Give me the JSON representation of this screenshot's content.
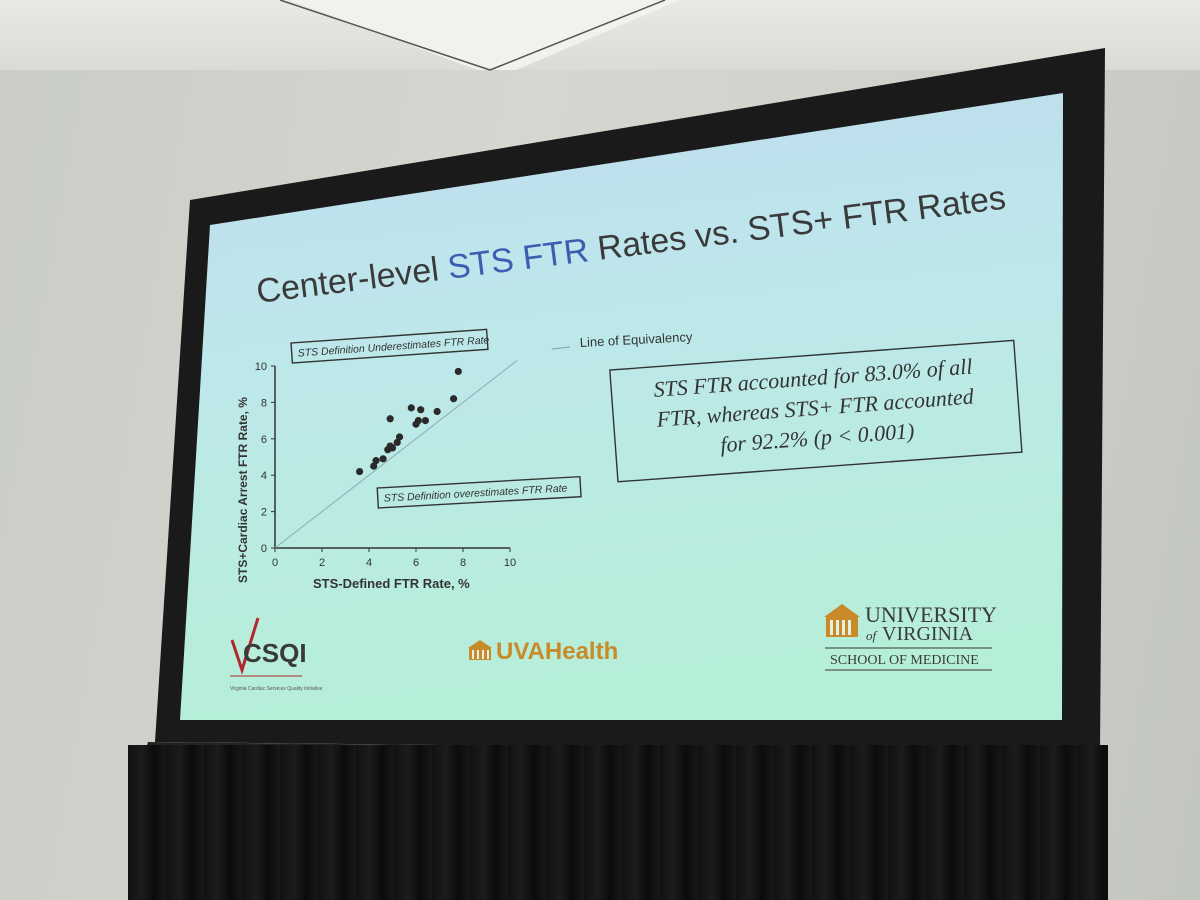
{
  "slide": {
    "title_prefix": "Center-level ",
    "title_highlight": "STS FTR",
    "title_suffix": " Rates vs. STS+ FTR Rates",
    "title_highlight_color": "#3b5fb0",
    "callout": {
      "line1": "STS FTR accounted for 83.0% of all",
      "line2": "FTR, whereas STS+ FTR accounted",
      "line3": "for 92.2% (p < 0.001)"
    },
    "logos": {
      "csqi": "CSQI",
      "csqi_tagline": "Virginia Cardiac Services Quality Initiative",
      "uva_prefix": "UVA",
      "uva_suffix": "Health",
      "university_line1": "UNIVERSITY",
      "university_of": "of",
      "university_line2": "VIRGINIA",
      "school": "SCHOOL OF MEDICINE"
    }
  },
  "chart_data": {
    "type": "scatter",
    "xlabel": "STS-Defined  FTR Rate, %",
    "ylabel": "STS+Cardiac  Arrest FTR Rate, %",
    "xlim": [
      0,
      10
    ],
    "ylim": [
      0,
      10
    ],
    "x_ticks": [
      "0",
      "2",
      "4",
      "6",
      "8",
      "10"
    ],
    "y_ticks": [
      "0",
      "2",
      "4",
      "6",
      "8",
      "10"
    ],
    "legend": "Line of  Equivalency",
    "annotation_upper": "STS  Definition Underestimates  FTR Rate",
    "annotation_lower": "STS  Definition overestimates  FTR Rate",
    "points": [
      [
        3.6,
        4.2
      ],
      [
        4.2,
        4.5
      ],
      [
        4.3,
        4.8
      ],
      [
        4.6,
        4.9
      ],
      [
        4.8,
        5.4
      ],
      [
        4.9,
        5.6
      ],
      [
        5.0,
        5.5
      ],
      [
        5.2,
        5.8
      ],
      [
        5.3,
        6.1
      ],
      [
        4.9,
        7.1
      ],
      [
        5.8,
        7.7
      ],
      [
        6.0,
        6.8
      ],
      [
        6.1,
        7.0
      ],
      [
        6.2,
        7.6
      ],
      [
        6.4,
        7.0
      ],
      [
        6.9,
        7.5
      ],
      [
        7.6,
        8.2
      ],
      [
        7.8,
        9.7
      ]
    ]
  }
}
